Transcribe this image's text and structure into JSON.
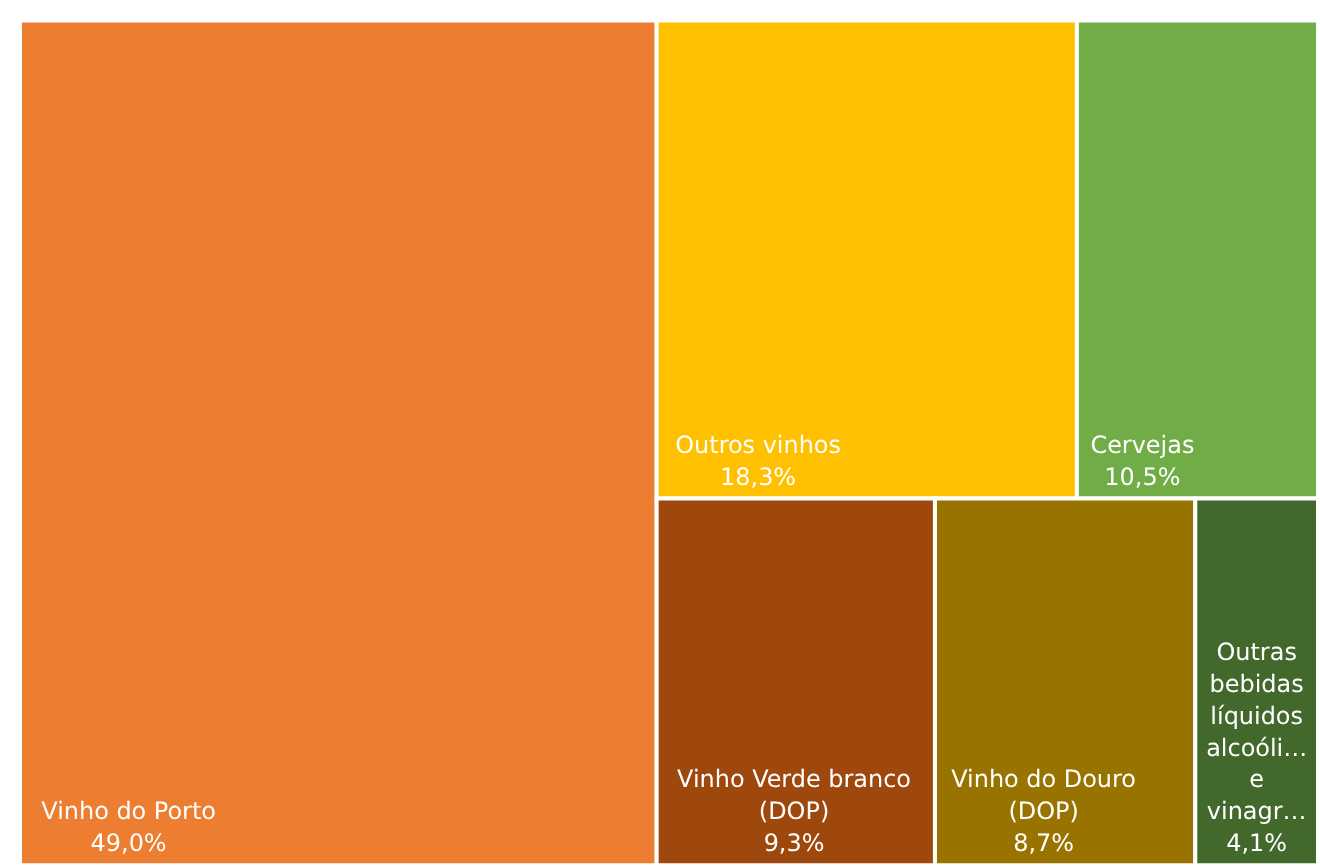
{
  "chart_data": {
    "type": "other",
    "categories": [
      "Vinho do Porto",
      "Outros vinhos",
      "Cervejas",
      "Vinho Verde branco (DOP)",
      "Vinho do Douro (DOP)",
      "Outras bebidas líquidos alcoóli… e vinagr…"
    ],
    "values": [
      49.0,
      18.3,
      10.5,
      9.3,
      8.7,
      4.1
    ],
    "value_labels": [
      "49,0%",
      "18,3%",
      "10,5%",
      "9,3%",
      "8,7%",
      "4,1%"
    ],
    "colors": [
      "#ed7d31",
      "#ffc000",
      "#70ad47",
      "#9e480e",
      "#997300",
      "#43682b"
    ]
  }
}
